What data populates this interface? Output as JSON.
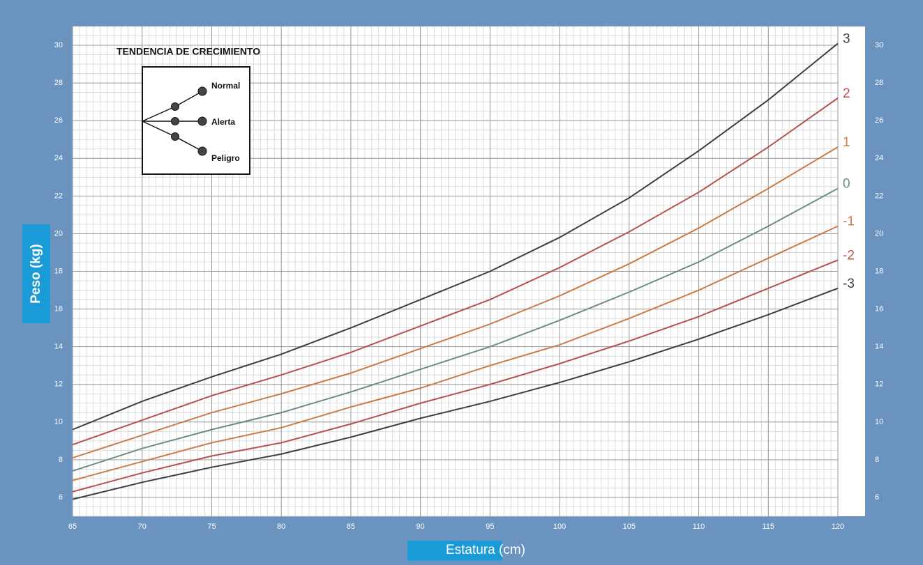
{
  "chart_data": {
    "type": "line",
    "xlabel": "Estatura (cm)",
    "ylabel": "Peso (kg)",
    "x": [
      65,
      70,
      75,
      80,
      85,
      90,
      95,
      100,
      105,
      110,
      115,
      120
    ],
    "xlim": [
      65,
      120
    ],
    "xticks": [
      65,
      70,
      75,
      80,
      85,
      90,
      95,
      100,
      105,
      110,
      115,
      120
    ],
    "ylim": [
      5,
      31
    ],
    "yticks": [
      6,
      8,
      10,
      12,
      14,
      16,
      18,
      20,
      22,
      24,
      26,
      28,
      30
    ],
    "grid": true,
    "series": [
      {
        "name": "3",
        "color": "#3d3d44",
        "values": [
          9.6,
          11.1,
          12.4,
          13.6,
          15.0,
          16.5,
          18.0,
          19.8,
          21.9,
          24.4,
          27.1,
          30.1
        ]
      },
      {
        "name": "2",
        "color": "#b5524f",
        "values": [
          8.8,
          10.1,
          11.4,
          12.5,
          13.7,
          15.1,
          16.5,
          18.2,
          20.1,
          22.2,
          24.6,
          27.2
        ]
      },
      {
        "name": "1",
        "color": "#c97c48",
        "values": [
          8.1,
          9.3,
          10.5,
          11.5,
          12.6,
          13.9,
          15.2,
          16.7,
          18.4,
          20.3,
          22.4,
          24.6
        ]
      },
      {
        "name": "0",
        "color": "#6b8c86",
        "values": [
          7.4,
          8.6,
          9.6,
          10.5,
          11.6,
          12.8,
          14.0,
          15.4,
          16.9,
          18.5,
          20.4,
          22.4
        ]
      },
      {
        "name": "-1",
        "color": "#c97c48",
        "values": [
          6.9,
          7.9,
          8.9,
          9.7,
          10.8,
          11.8,
          13.0,
          14.1,
          15.5,
          17.0,
          18.7,
          20.4
        ]
      },
      {
        "name": "-2",
        "color": "#b5524f",
        "values": [
          6.3,
          7.3,
          8.2,
          8.9,
          9.9,
          11.0,
          12.0,
          13.1,
          14.3,
          15.6,
          17.1,
          18.6
        ]
      },
      {
        "name": "-3",
        "color": "#3d3d44",
        "values": [
          5.9,
          6.8,
          7.6,
          8.3,
          9.2,
          10.2,
          11.1,
          12.1,
          13.2,
          14.4,
          15.7,
          17.1
        ]
      }
    ],
    "trend_legend": {
      "title": "TENDENCIA DE CRECIMIENTO",
      "labels": [
        "Normal",
        "Alerta",
        "Peligro"
      ]
    }
  }
}
